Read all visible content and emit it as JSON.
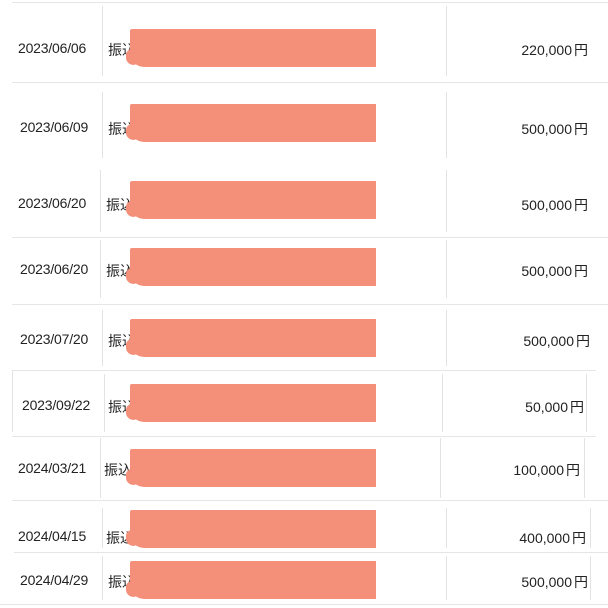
{
  "colors": {
    "redaction": "#f4907a",
    "divider": "#e6e6e6",
    "text": "#222222"
  },
  "transactions": [
    {
      "date": "2023/06/06",
      "type": "振込",
      "amount": "220,000",
      "currency": "円"
    },
    {
      "date": "2023/06/09",
      "type": "振込",
      "amount": "500,000",
      "currency": "円"
    },
    {
      "date": "2023/06/20",
      "type": "振込",
      "amount": "500,000",
      "currency": "円"
    },
    {
      "date": "2023/06/20",
      "type": "振込",
      "amount": "500,000",
      "currency": "円"
    },
    {
      "date": "2023/07/20",
      "type": "振込",
      "amount": "500,000",
      "currency": "円"
    },
    {
      "date": "2023/09/22",
      "type": "振込",
      "amount": "50,000",
      "currency": "円"
    },
    {
      "date": "2024/03/21",
      "type": "振込",
      "amount": "100,000",
      "currency": "円"
    },
    {
      "date": "2024/04/15",
      "type": "振込",
      "amount": "400,000",
      "currency": "円"
    },
    {
      "date": "2024/04/29",
      "type": "振込",
      "amount": "500,000",
      "currency": "円"
    }
  ]
}
